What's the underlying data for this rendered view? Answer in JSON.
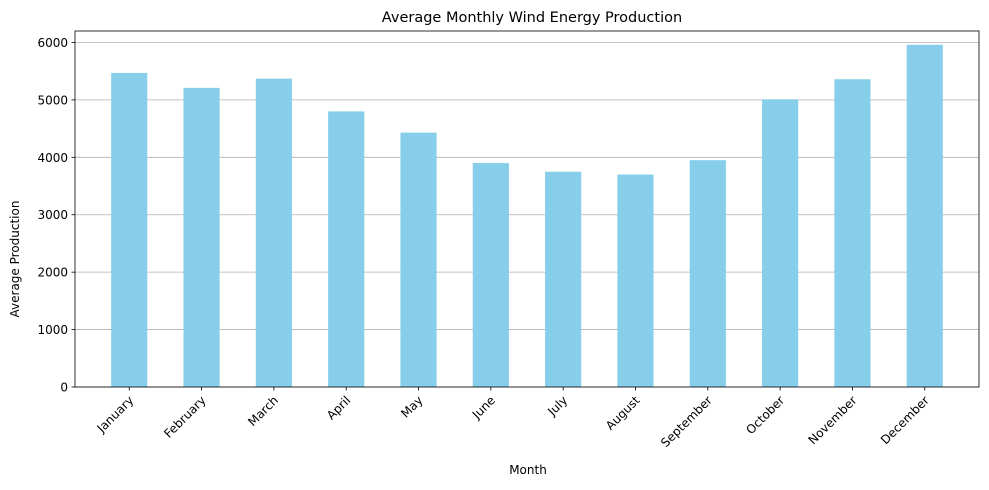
{
  "chart_data": {
    "type": "bar",
    "title": "Average Monthly Wind Energy Production",
    "xlabel": "Month",
    "ylabel": "Average Production",
    "categories": [
      "January",
      "February",
      "March",
      "April",
      "May",
      "June",
      "July",
      "August",
      "September",
      "October",
      "November",
      "December"
    ],
    "values": [
      5470,
      5210,
      5370,
      4800,
      4430,
      3900,
      3750,
      3700,
      3950,
      5010,
      5360,
      5960
    ],
    "ylim": [
      0,
      6200
    ],
    "yticks": [
      0,
      1000,
      2000,
      3000,
      4000,
      5000,
      6000
    ],
    "grid": "horizontal",
    "legend": "none",
    "colors": {
      "bar": "#87ceeb",
      "grid": "#b0b0b0",
      "axis": "#000000"
    }
  }
}
